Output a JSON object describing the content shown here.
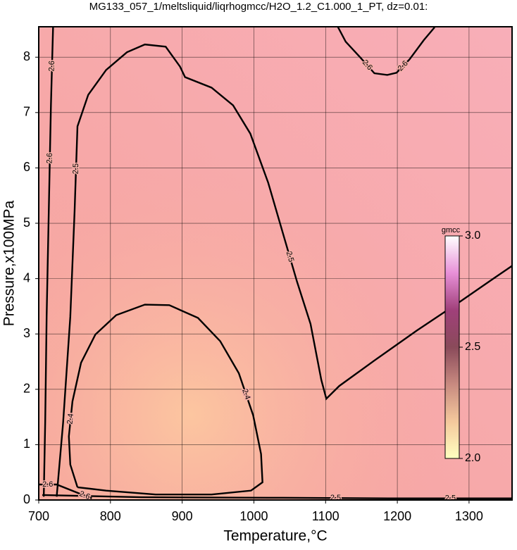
{
  "chart_data": {
    "type": "contour",
    "title": "MG133_057_1/meltsliquid/liqrhogmcc/H2O_1.2_C1.000_1_PT, dz=0.01:",
    "x_label": "Temperature,°C",
    "y_label": "Pressure,x100MPa",
    "xlim": [
      700,
      1360
    ],
    "ylim": [
      0,
      8.55
    ],
    "xticks": [
      700,
      800,
      900,
      1000,
      1100,
      1200,
      1300
    ],
    "yticks": [
      0,
      1,
      2,
      3,
      4,
      5,
      6,
      7,
      8
    ],
    "grid": true,
    "line_color": "#000000",
    "contours": [
      {
        "level": 2.4,
        "x": [
          754,
          744,
          742,
          747,
          759,
          779,
          808,
          848,
          882,
          922,
          953,
          979,
          999,
          1010,
          1012,
          996,
          941,
          863,
          794,
          754
        ],
        "y": [
          0.23,
          0.64,
          1.15,
          1.78,
          2.48,
          2.99,
          3.34,
          3.53,
          3.52,
          3.29,
          2.87,
          2.29,
          1.53,
          0.83,
          0.32,
          0.17,
          0.1,
          0.1,
          0.17,
          0.23
        ]
      },
      {
        "level": 2.5,
        "x": [
          725,
          734,
          744,
          750,
          754,
          769,
          794,
          823,
          848,
          877,
          897,
          904,
          941,
          971,
          995,
          1020,
          1040,
          1060,
          1079,
          1094,
          1101,
          1119,
          1168,
          1227,
          1286,
          1335,
          1360
        ],
        "y": [
          0.06,
          1.4,
          3.31,
          5.22,
          6.75,
          7.32,
          7.77,
          8.09,
          8.23,
          8.19,
          7.83,
          7.64,
          7.45,
          7.13,
          6.62,
          5.73,
          4.84,
          3.95,
          3.18,
          2.17,
          1.83,
          2.06,
          2.52,
          3.06,
          3.57,
          4.01,
          4.23
        ]
      },
      {
        "level": 2.5,
        "x": [
          705,
          843,
          1040,
          1188,
          1360
        ],
        "y": [
          0.09,
          0.05,
          0.04,
          0.03,
          0.03
        ]
      },
      {
        "level": 2.6,
        "x": [
          1117,
          1128,
          1148,
          1168,
          1186,
          1199,
          1217,
          1237,
          1252
        ],
        "y": [
          8.55,
          8.28,
          8.0,
          7.71,
          7.68,
          7.72,
          7.96,
          8.31,
          8.54
        ]
      },
      {
        "level": 2.6,
        "x": [
          707,
          709,
          711,
          714,
          717,
          720
        ],
        "y": [
          0.06,
          1.4,
          3.31,
          5.22,
          7.13,
          8.55
        ]
      },
      {
        "level": 2.6,
        "x": [
          700,
          725,
          754,
          774
        ],
        "y": [
          0.28,
          0.28,
          0.13,
          0.03
        ]
      }
    ],
    "colorbar": {
      "label": "gmcc",
      "lim": [
        2,
        3
      ],
      "ticks": [
        {
          "value": 2,
          "label": "2.0"
        },
        {
          "value": 2.5,
          "label": "2.5"
        },
        {
          "value": 3,
          "label": "3.0"
        }
      ],
      "colors": [
        "#ffffc0",
        "#f4c89c",
        "#c88a80",
        "#8a4a5a",
        "#a0407a",
        "#e890d8",
        "#ffffff"
      ]
    }
  }
}
